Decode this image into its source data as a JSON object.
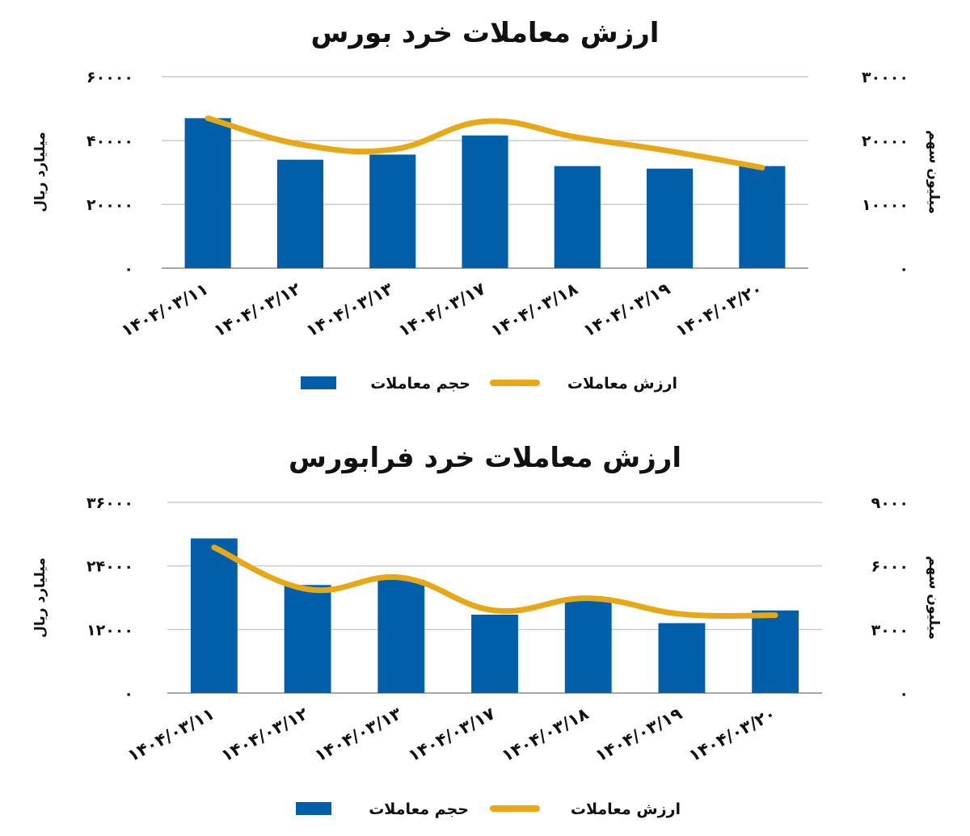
{
  "chart_data": [
    {
      "type": "bar",
      "title": "ارزش معاملات خرد بورس",
      "categories": [
        "1404/03/11",
        "1404/03/12",
        "1404/03/13",
        "1404/03/17",
        "1404/03/18",
        "1404/03/19",
        "1404/03/20"
      ],
      "ylabel_left": "میلیارد ریال",
      "ylabel_right": "میلیون سهم",
      "ylim_left": [
        0,
        60000
      ],
      "ylim_right": [
        0,
        30000
      ],
      "yticks_left": [
        "60000",
        "40000",
        "20000",
        "0"
      ],
      "yticks_right": [
        "30000",
        "20000",
        "10000",
        "0"
      ],
      "series": [
        {
          "name": "حجم معاملات",
          "type": "bar",
          "axis": "right",
          "color": "#005FA8",
          "values": [
            23500,
            17000,
            17800,
            20800,
            16000,
            15600,
            16000
          ]
        },
        {
          "name": "ارزش معاملات",
          "type": "line",
          "axis": "left",
          "color": "#E6A817",
          "values": [
            47000,
            38800,
            37200,
            46000,
            41000,
            36700,
            31500
          ]
        }
      ],
      "legend": "bottom",
      "grid": true
    },
    {
      "type": "bar",
      "title": "ارزش معاملات خرد فرابورس",
      "categories": [
        "1404/03/11",
        "1404/03/12",
        "1404/03/13",
        "1404/03/17",
        "1404/03/18",
        "1404/03/19",
        "1404/03/20"
      ],
      "ylabel_left": "میلیارد ریال",
      "ylabel_right": "میلیون سهم",
      "ylim_left": [
        0,
        36000
      ],
      "ylim_right": [
        0,
        9000
      ],
      "yticks_left": [
        "36000",
        "24000",
        "12000",
        "0"
      ],
      "yticks_right": [
        "9000",
        "6000",
        "3000",
        "0"
      ],
      "series": [
        {
          "name": "حجم معاملات",
          "type": "bar",
          "axis": "right",
          "color": "#005FA8",
          "values": [
            7300,
            5100,
            5350,
            3700,
            4400,
            3300,
            3900
          ]
        },
        {
          "name": "ارزش معاملات",
          "type": "line",
          "axis": "left",
          "color": "#E6A817",
          "values": [
            27500,
            19600,
            21800,
            15600,
            17900,
            14900,
            14700
          ]
        }
      ],
      "legend": "bottom",
      "grid": true
    }
  ]
}
